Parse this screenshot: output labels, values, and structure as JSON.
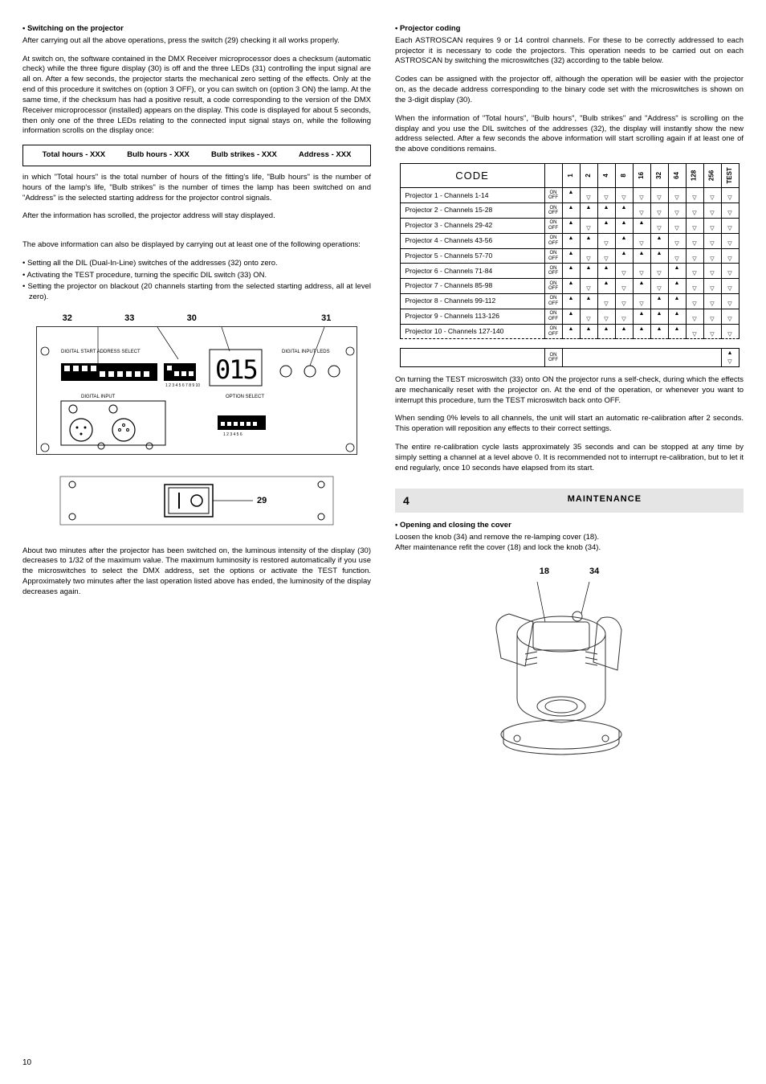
{
  "left": {
    "h1": "• Switching on the projector",
    "p1": "After carrying out all the above operations, press the switch (29) checking it all works properly.",
    "p2": "At switch on, the software contained in the DMX Receiver microprocessor does a checksum (automatic check) while the three figure display (30) is off and the three LEDs (31) controlling the input signal are all on. After a few seconds, the projector starts the mechanical zero setting of the effects. Only at the end of this procedure it switches on (option 3 OFF), or you can switch on (option 3 ON) the lamp. At the same time, if the checksum has had a positive result, a code corresponding to the version of the DMX Receiver microprocessor (installed) appears on the display. This code is displayed for about 5 seconds, then only one of the three LEDs relating to the connected input signal stays on, while the following information scrolls on the display once:",
    "box": [
      "Total hours - XXX",
      "Bulb hours - XXX",
      "Bulb strikes - XXX",
      "Address - XXX"
    ],
    "p3": "in which \"Total hours\" is the total number of hours of the fitting's life, \"Bulb hours\" is the number of hours of the lamp's life, \"Bulb strikes\" is the number of times the lamp has been switched on and \"Address\" is the selected starting address for the projector control signals.",
    "p4": "After the information has scrolled, the projector address will stay displayed.",
    "p5": "The above information can also be displayed by carrying out at least one of the following operations:",
    "li1": "Setting all the DIL (Dual-In-Line) switches of the addresses (32) onto zero.",
    "li2": "Activating the TEST procedure, turning the specific DIL switch (33) ON.",
    "li3": "Setting the projector on blackout (20 channels starting from the selected starting address, all at level zero).",
    "labels": {
      "l32": "32",
      "l33": "33",
      "l30": "30",
      "l31": "31",
      "l29": "29"
    },
    "panel": {
      "addressLabel": "DIGITAL START ADDRESS SELECT",
      "inputLedsLabel": "DIGITAL INPUT LEDS",
      "digitalInput": "DIGITAL INPUT",
      "optionSelect": "OPTION SELECT",
      "display": "015"
    },
    "p6": "About two minutes after the projector has been switched on, the luminous intensity of the display (30) decreases to 1/32 of the maximum value. The maximum luminosity is restored automatically if you use the microswitches to select the DMX address, set the options or activate the TEST function. Approximately two minutes after the last operation listed above has ended, the luminosity of the display decreases again."
  },
  "right": {
    "h1": "• Projector coding",
    "p1": "Each ASTROSCAN requires 9 or 14 control channels. For these to be correctly addressed to each projector it is necessary to code the projectors. This operation needs to be carried out on each ASTROSCAN by switching the microswitches (32) according to the table below.",
    "p2": "Codes can be assigned with the projector off, although the operation will be easier with the projector on, as the decade address corresponding to the binary code set with the microswitches is shown on the 3-digit display (30).",
    "p3": "When the information of \"Total hours\", \"Bulb hours\", \"Bulb strikes\" and \"Address\" is scrolling on the display and you use the DIL switches of the addresses (32), the display will instantly show the new address selected. After a few seconds the above information will start scrolling again if at least one of the above conditions remains.",
    "tableHeader": "CODE",
    "cols": [
      "1",
      "2",
      "4",
      "8",
      "16",
      "32",
      "64",
      "128",
      "256",
      "TEST"
    ],
    "rows": [
      {
        "label": "Projector 1 - Channels 1-14",
        "sw": [
          1,
          0,
          0,
          0,
          0,
          0,
          0,
          0,
          0,
          0
        ]
      },
      {
        "label": "Projector 2 - Channels 15-28",
        "sw": [
          1,
          1,
          1,
          1,
          0,
          0,
          0,
          0,
          0,
          0
        ]
      },
      {
        "label": "Projector 3 - Channels 29-42",
        "sw": [
          1,
          0,
          1,
          1,
          1,
          0,
          0,
          0,
          0,
          0
        ]
      },
      {
        "label": "Projector 4 - Channels 43-56",
        "sw": [
          1,
          1,
          0,
          1,
          0,
          1,
          0,
          0,
          0,
          0
        ]
      },
      {
        "label": "Projector 5 - Channels 57-70",
        "sw": [
          1,
          0,
          0,
          1,
          1,
          1,
          0,
          0,
          0,
          0
        ]
      },
      {
        "label": "Projector 6 - Channels 71-84",
        "sw": [
          1,
          1,
          1,
          0,
          0,
          0,
          1,
          0,
          0,
          0
        ]
      },
      {
        "label": "Projector 7 - Channels 85-98",
        "sw": [
          1,
          0,
          1,
          0,
          1,
          0,
          1,
          0,
          0,
          0
        ]
      },
      {
        "label": "Projector 8 - Channels 99-112",
        "sw": [
          1,
          1,
          0,
          0,
          0,
          1,
          1,
          0,
          0,
          0
        ]
      },
      {
        "label": "Projector 9 - Channels 113-126",
        "sw": [
          1,
          0,
          0,
          0,
          1,
          1,
          1,
          0,
          0,
          0
        ]
      },
      {
        "label": "Projector 10 - Channels 127-140",
        "sw": [
          1,
          1,
          1,
          1,
          1,
          1,
          1,
          0,
          0,
          0
        ]
      }
    ],
    "p4": "On turning the TEST microswitch (33) onto ON the projector runs a self-check, during which the effects are mechanically reset with the projector on. At the end of the operation, or whenever you want to interrupt this procedure, turn the TEST microswitch back onto OFF.",
    "p5": "When sending 0% levels to all channels, the unit will start an automatic re-calibration after 2 seconds. This operation will reposition any effects to their correct settings.",
    "p6": "The entire re-calibration cycle lasts approximately 35 seconds and can be stopped at any time by simply setting a channel at a level above 0. It is recommended not to interrupt re-calibration, but to let it end regularly, once 10 seconds have elapsed from its start.",
    "sectionNum": "4",
    "sectionTitle": "MAINTENANCE",
    "h2": "• Opening and closing the cover",
    "p7": "Loosen the knob (34) and remove the re-lamping cover (18).",
    "p8": "After maintenance refit the cover (18) and lock the knob (34).",
    "imgLabels": {
      "l18": "18",
      "l34": "34"
    }
  },
  "pageNum": "10"
}
